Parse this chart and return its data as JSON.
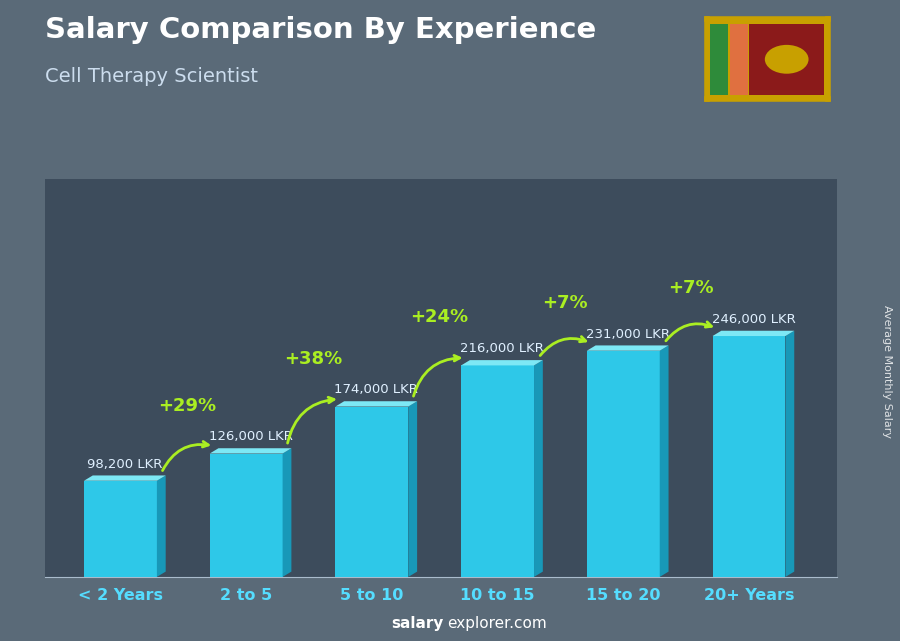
{
  "title": "Salary Comparison By Experience",
  "subtitle": "Cell Therapy Scientist",
  "categories": [
    "< 2 Years",
    "2 to 5",
    "5 to 10",
    "10 to 15",
    "15 to 20",
    "20+ Years"
  ],
  "values": [
    98200,
    126000,
    174000,
    216000,
    231000,
    246000
  ],
  "labels": [
    "98,200 LKR",
    "126,000 LKR",
    "174,000 LKR",
    "216,000 LKR",
    "231,000 LKR",
    "246,000 LKR"
  ],
  "pct_changes": [
    "+29%",
    "+38%",
    "+24%",
    "+7%",
    "+7%"
  ],
  "bar_color_front": "#2ec8e8",
  "bar_color_top": "#7de8f5",
  "bar_color_side": "#1898b8",
  "bg_color": "#5a6a78",
  "overlay_color": "#3a4a58",
  "title_color": "#ffffff",
  "subtitle_color": "#ccddee",
  "label_color": "#e0f0ff",
  "pct_color": "#aaee22",
  "xtick_color": "#55ddff",
  "watermark_bold": "salary",
  "watermark_rest": "explorer.com",
  "ylabel_text": "Average Monthly Salary",
  "figsize": [
    9.0,
    6.41
  ],
  "dpi": 100
}
